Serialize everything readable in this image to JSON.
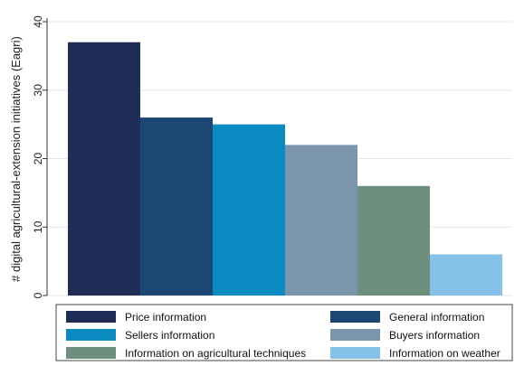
{
  "chart_data": {
    "type": "bar",
    "title": "",
    "xlabel": "",
    "ylabel": "# digital agricultural-extension initiatives (Eagri)",
    "ylim": [
      0,
      40
    ],
    "yticks": [
      0,
      10,
      20,
      30,
      40
    ],
    "grid": "horizontal",
    "legend_position": "bottom",
    "series": [
      {
        "name": "Price information",
        "value": 37,
        "color": "#1f2d57"
      },
      {
        "name": "General information",
        "value": 26,
        "color": "#1c4673"
      },
      {
        "name": "Sellers information",
        "value": 25,
        "color": "#0a8bc2"
      },
      {
        "name": "Buyers information",
        "value": 22,
        "color": "#7b95ac"
      },
      {
        "name": "Information on agricultural techniques",
        "value": 16,
        "color": "#6e8e7e"
      },
      {
        "name": "Information on weather",
        "value": 6,
        "color": "#86c1ea"
      }
    ]
  }
}
